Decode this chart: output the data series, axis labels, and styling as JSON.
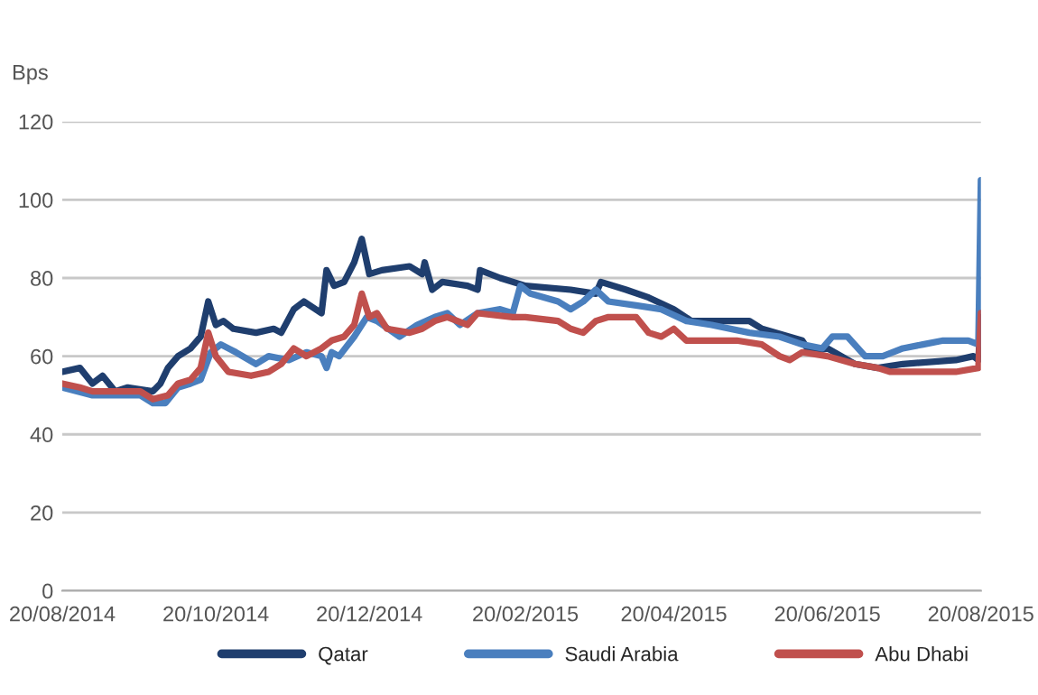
{
  "chart_data": {
    "type": "line",
    "ylabel": "Bps",
    "ylim": [
      0,
      120
    ],
    "yticks": [
      0,
      20,
      40,
      60,
      80,
      100,
      120
    ],
    "xlim": [
      "2014-08-20",
      "2015-08-20"
    ],
    "xticks": [
      {
        "value": "2014-08-20",
        "label": "20/08/2014"
      },
      {
        "value": "2014-10-20",
        "label": "20/10/2014"
      },
      {
        "value": "2014-12-20",
        "label": "20/12/2014"
      },
      {
        "value": "2015-02-20",
        "label": "20/02/2015"
      },
      {
        "value": "2015-04-20",
        "label": "20/04/2015"
      },
      {
        "value": "2015-06-20",
        "label": "20/06/2015"
      },
      {
        "value": "2015-08-20",
        "label": "20/08/2015"
      }
    ],
    "grid": "y",
    "legend": "bottom",
    "marker": "none",
    "line_style": "solid",
    "series": [
      {
        "name": "Qatar",
        "color": "#1f3e6e",
        "x": [
          "2014-08-20",
          "2014-08-27",
          "2014-09-01",
          "2014-09-05",
          "2014-09-10",
          "2014-09-15",
          "2014-09-25",
          "2014-09-28",
          "2014-10-01",
          "2014-10-05",
          "2014-10-10",
          "2014-10-14",
          "2014-10-17",
          "2014-10-20",
          "2014-10-23",
          "2014-10-27",
          "2014-11-05",
          "2014-11-12",
          "2014-11-15",
          "2014-11-20",
          "2014-11-24",
          "2014-12-01",
          "2014-12-03",
          "2014-12-06",
          "2014-12-10",
          "2014-12-14",
          "2014-12-17",
          "2014-12-20",
          "2014-12-25",
          "2015-01-05",
          "2015-01-10",
          "2015-01-11",
          "2015-01-14",
          "2015-01-18",
          "2015-01-28",
          "2015-02-01",
          "2015-02-02",
          "2015-02-10",
          "2015-02-20",
          "2015-03-10",
          "2015-03-20",
          "2015-03-22",
          "2015-04-01",
          "2015-04-10",
          "2015-04-20",
          "2015-04-27",
          "2015-05-20",
          "2015-05-25",
          "2015-06-10",
          "2015-06-13",
          "2015-06-20",
          "2015-07-01",
          "2015-07-10",
          "2015-07-20",
          "2015-08-10",
          "2015-08-17",
          "2015-08-19",
          "2015-08-20"
        ],
        "values": [
          56,
          57,
          53,
          55,
          51,
          52,
          51,
          53,
          57,
          60,
          62,
          65,
          74,
          68,
          69,
          67,
          66,
          67,
          66,
          72,
          74,
          71,
          82,
          78,
          79,
          84,
          90,
          81,
          82,
          83,
          81,
          84,
          77,
          79,
          78,
          77,
          82,
          80,
          78,
          77,
          76,
          79,
          77,
          75,
          72,
          69,
          69,
          67,
          64,
          61,
          62,
          58,
          57,
          58,
          59,
          60,
          59,
          70
        ]
      },
      {
        "name": "Saudi Arabia",
        "color": "#4a7fbe",
        "x": [
          "2014-08-20",
          "2014-09-01",
          "2014-09-20",
          "2014-09-25",
          "2014-09-30",
          "2014-10-05",
          "2014-10-10",
          "2014-10-14",
          "2014-10-18",
          "2014-10-22",
          "2014-10-28",
          "2014-11-05",
          "2014-11-10",
          "2014-11-18",
          "2014-11-25",
          "2014-12-01",
          "2014-12-03",
          "2014-12-05",
          "2014-12-08",
          "2014-12-14",
          "2014-12-19",
          "2014-12-23",
          "2015-01-01",
          "2015-01-08",
          "2015-01-15",
          "2015-01-20",
          "2015-01-25",
          "2015-02-01",
          "2015-02-10",
          "2015-02-15",
          "2015-02-18",
          "2015-02-22",
          "2015-03-05",
          "2015-03-10",
          "2015-03-15",
          "2015-03-20",
          "2015-03-25",
          "2015-04-05",
          "2015-04-15",
          "2015-04-25",
          "2015-05-05",
          "2015-05-20",
          "2015-06-01",
          "2015-06-10",
          "2015-06-18",
          "2015-06-22",
          "2015-06-28",
          "2015-07-05",
          "2015-07-12",
          "2015-07-20",
          "2015-07-28",
          "2015-08-05",
          "2015-08-15",
          "2015-08-19",
          "2015-08-20"
        ],
        "values": [
          52,
          50,
          50,
          48,
          48,
          52,
          53,
          54,
          61,
          63,
          61,
          58,
          60,
          59,
          61,
          60,
          57,
          61,
          60,
          65,
          70,
          69,
          65,
          68,
          70,
          71,
          68,
          71,
          72,
          71,
          78,
          76,
          74,
          72,
          74,
          77,
          74,
          73,
          72,
          69,
          68,
          66,
          65,
          63,
          62,
          65,
          65,
          60,
          60,
          62,
          63,
          64,
          64,
          63,
          105
        ]
      },
      {
        "name": "Abu Dhabi",
        "color": "#c0504d",
        "x": [
          "2014-08-20",
          "2014-08-27",
          "2014-09-01",
          "2014-09-20",
          "2014-09-25",
          "2014-10-01",
          "2014-10-05",
          "2014-10-10",
          "2014-10-14",
          "2014-10-17",
          "2014-10-20",
          "2014-10-25",
          "2014-11-03",
          "2014-11-10",
          "2014-11-15",
          "2014-11-20",
          "2014-11-25",
          "2014-12-01",
          "2014-12-05",
          "2014-12-10",
          "2014-12-14",
          "2014-12-17",
          "2014-12-20",
          "2014-12-23",
          "2014-12-27",
          "2015-01-05",
          "2015-01-10",
          "2015-01-15",
          "2015-01-20",
          "2015-01-28",
          "2015-02-01",
          "2015-02-15",
          "2015-02-20",
          "2015-03-05",
          "2015-03-10",
          "2015-03-15",
          "2015-03-20",
          "2015-03-25",
          "2015-04-05",
          "2015-04-10",
          "2015-04-15",
          "2015-04-20",
          "2015-04-25",
          "2015-05-15",
          "2015-05-25",
          "2015-06-01",
          "2015-06-05",
          "2015-06-10",
          "2015-06-20",
          "2015-07-01",
          "2015-07-10",
          "2015-07-15",
          "2015-08-10",
          "2015-08-19",
          "2015-08-20"
        ],
        "values": [
          53,
          52,
          51,
          51,
          49,
          50,
          53,
          54,
          57,
          66,
          60,
          56,
          55,
          56,
          58,
          62,
          60,
          62,
          64,
          65,
          68,
          76,
          70,
          71,
          67,
          66,
          67,
          69,
          70,
          68,
          71,
          70,
          70,
          69,
          67,
          66,
          69,
          70,
          70,
          66,
          65,
          67,
          64,
          64,
          63,
          60,
          59,
          61,
          60,
          58,
          57,
          56,
          56,
          57,
          71
        ]
      }
    ]
  }
}
